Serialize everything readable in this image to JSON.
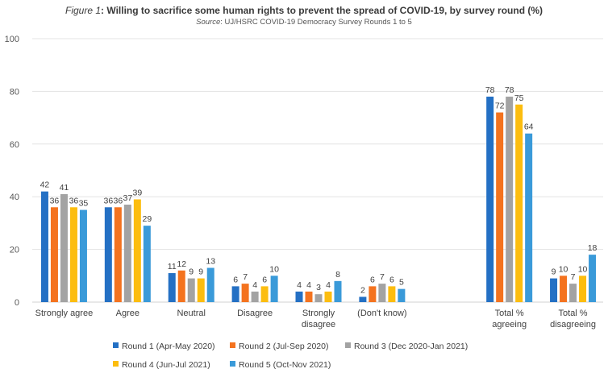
{
  "chart_data": {
    "type": "bar",
    "title_prefix": "Figure 1",
    "title": "Willing to sacrifice some human rights to prevent the spread of COVID-19, by survey round (%)",
    "subtitle_prefix": "Source",
    "subtitle": "UJ/HSRC COVID-19 Democracy Survey Rounds 1 to 5",
    "xlabel": "",
    "ylabel": "",
    "ylim": [
      0,
      100
    ],
    "yticks": [
      0,
      20,
      40,
      60,
      80,
      100
    ],
    "grid": true,
    "legend_position": "bottom",
    "categories": [
      [
        "Strongly agree"
      ],
      [
        "Agree"
      ],
      [
        "Neutral"
      ],
      [
        "Disagree"
      ],
      [
        "Strongly",
        "disagree"
      ],
      [
        "(Don't know)"
      ],
      [
        ""
      ],
      [
        "Total %",
        "agreeing"
      ],
      [
        "Total %",
        "disagreeing"
      ]
    ],
    "series": [
      {
        "name": "Round 1 (Apr-May 2020)",
        "color": "#2470c4",
        "values": [
          42,
          36,
          11,
          6,
          4,
          2,
          null,
          78,
          9
        ]
      },
      {
        "name": "Round 2 (Jul-Sep 2020)",
        "color": "#f4731f",
        "values": [
          36,
          36,
          12,
          7,
          4,
          6,
          null,
          72,
          10
        ]
      },
      {
        "name": "Round 3 (Dec 2020-Jan 2021)",
        "color": "#a3a3a3",
        "values": [
          41,
          37,
          9,
          4,
          3,
          7,
          null,
          78,
          7
        ]
      },
      {
        "name": "Round 4 (Jun-Jul 2021)",
        "color": "#fcbd0f",
        "values": [
          36,
          39,
          9,
          6,
          4,
          6,
          null,
          75,
          10
        ]
      },
      {
        "name": "Round 5 (Oct-Nov 2021)",
        "color": "#3a9ad9",
        "values": [
          35,
          29,
          13,
          10,
          8,
          5,
          null,
          64,
          18
        ]
      }
    ]
  }
}
